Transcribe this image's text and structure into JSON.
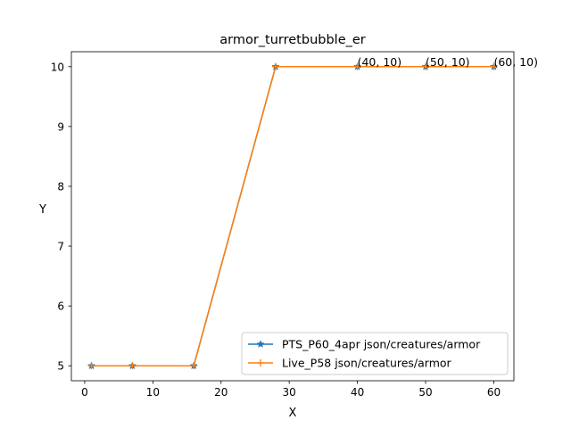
{
  "chart_data": {
    "type": "line",
    "title": "armor_turretbubble_er",
    "xlabel": "X",
    "ylabel": "Y",
    "xlim": [
      -1.95,
      62.95
    ],
    "ylim": [
      4.75,
      10.25
    ],
    "xticks": [
      0,
      10,
      20,
      30,
      40,
      50,
      60
    ],
    "yticks": [
      5,
      6,
      7,
      8,
      9,
      10
    ],
    "grid": false,
    "legend_position": "lower-right",
    "series": [
      {
        "name": "PTS_P60_4apr json/creatures/armor",
        "color": "#1f77b4",
        "marker": "star",
        "x": [
          1,
          7,
          16,
          28,
          40,
          50,
          60
        ],
        "y": [
          5,
          5,
          5,
          10,
          10,
          10,
          10
        ]
      },
      {
        "name": "Live_P58 json/creatures/armor",
        "color": "#ff7f0e",
        "marker": "plus",
        "x": [
          1,
          7,
          16,
          28,
          40,
          50,
          60
        ],
        "y": [
          5,
          5,
          5,
          10,
          10,
          10,
          10
        ]
      }
    ],
    "annotations": [
      {
        "text": "(40, 10)",
        "x": 40,
        "y": 10
      },
      {
        "text": "(50, 10)",
        "x": 50,
        "y": 10
      },
      {
        "text": "(60, 10)",
        "x": 60,
        "y": 10
      }
    ]
  }
}
